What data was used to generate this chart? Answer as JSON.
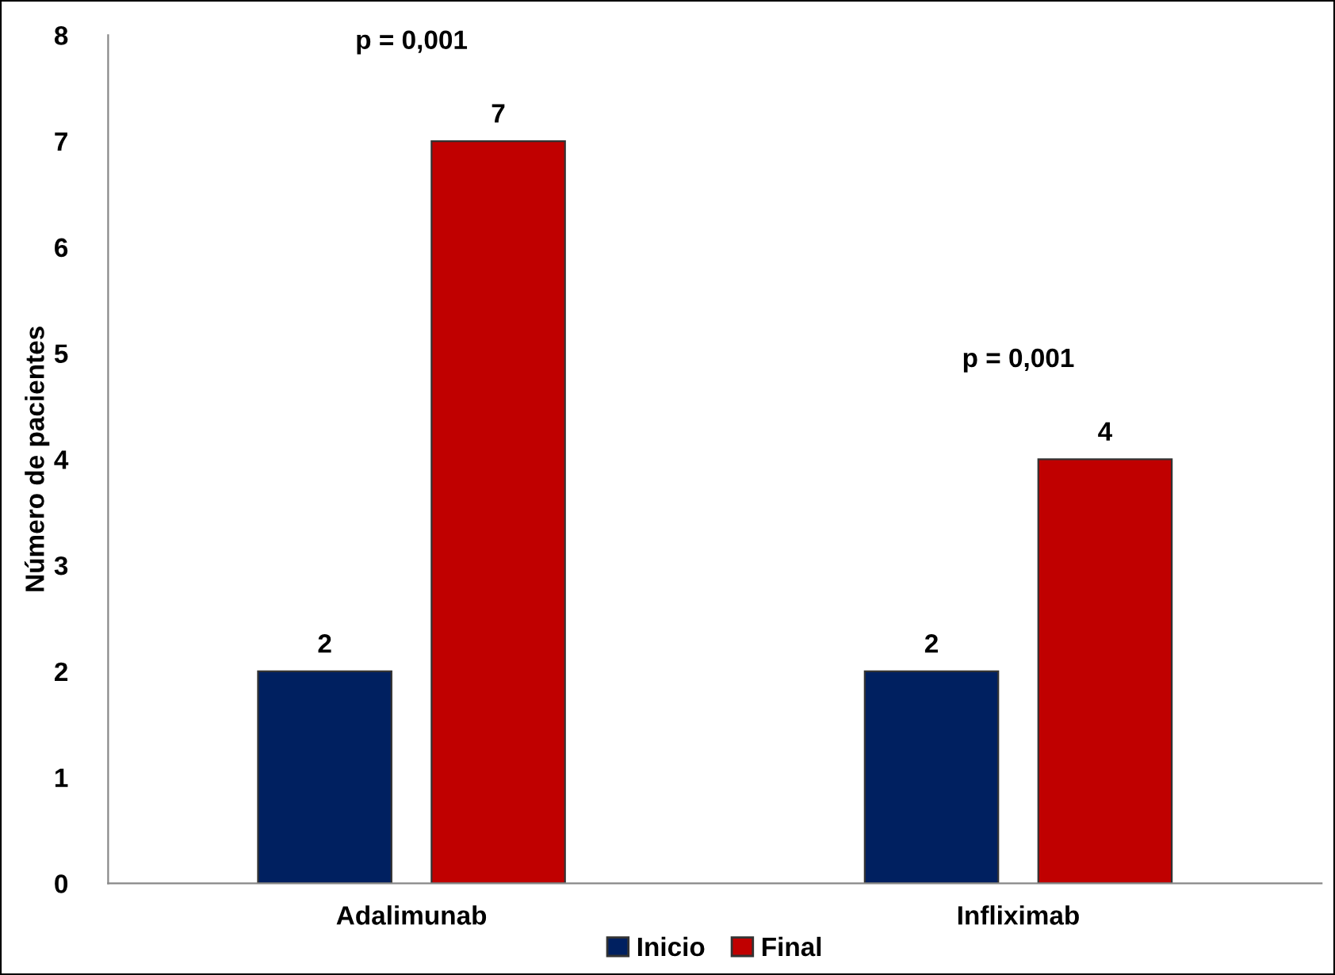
{
  "chart_data": {
    "type": "bar",
    "ylabel": "Número de pacientes",
    "categories": [
      "Adalimunab",
      "Infliximab"
    ],
    "series": [
      {
        "name": "Inicio",
        "color": "#002060",
        "values": [
          2,
          2
        ]
      },
      {
        "name": "Final",
        "color": "#c00000",
        "values": [
          7,
          4
        ]
      }
    ],
    "ylim": [
      0,
      8
    ],
    "yticks": [
      0,
      1,
      2,
      3,
      4,
      5,
      6,
      7,
      8
    ],
    "data_labels": true,
    "legend": "bottom",
    "grid": false,
    "annotations": [
      "p = 0,001",
      "p = 0,001"
    ]
  }
}
